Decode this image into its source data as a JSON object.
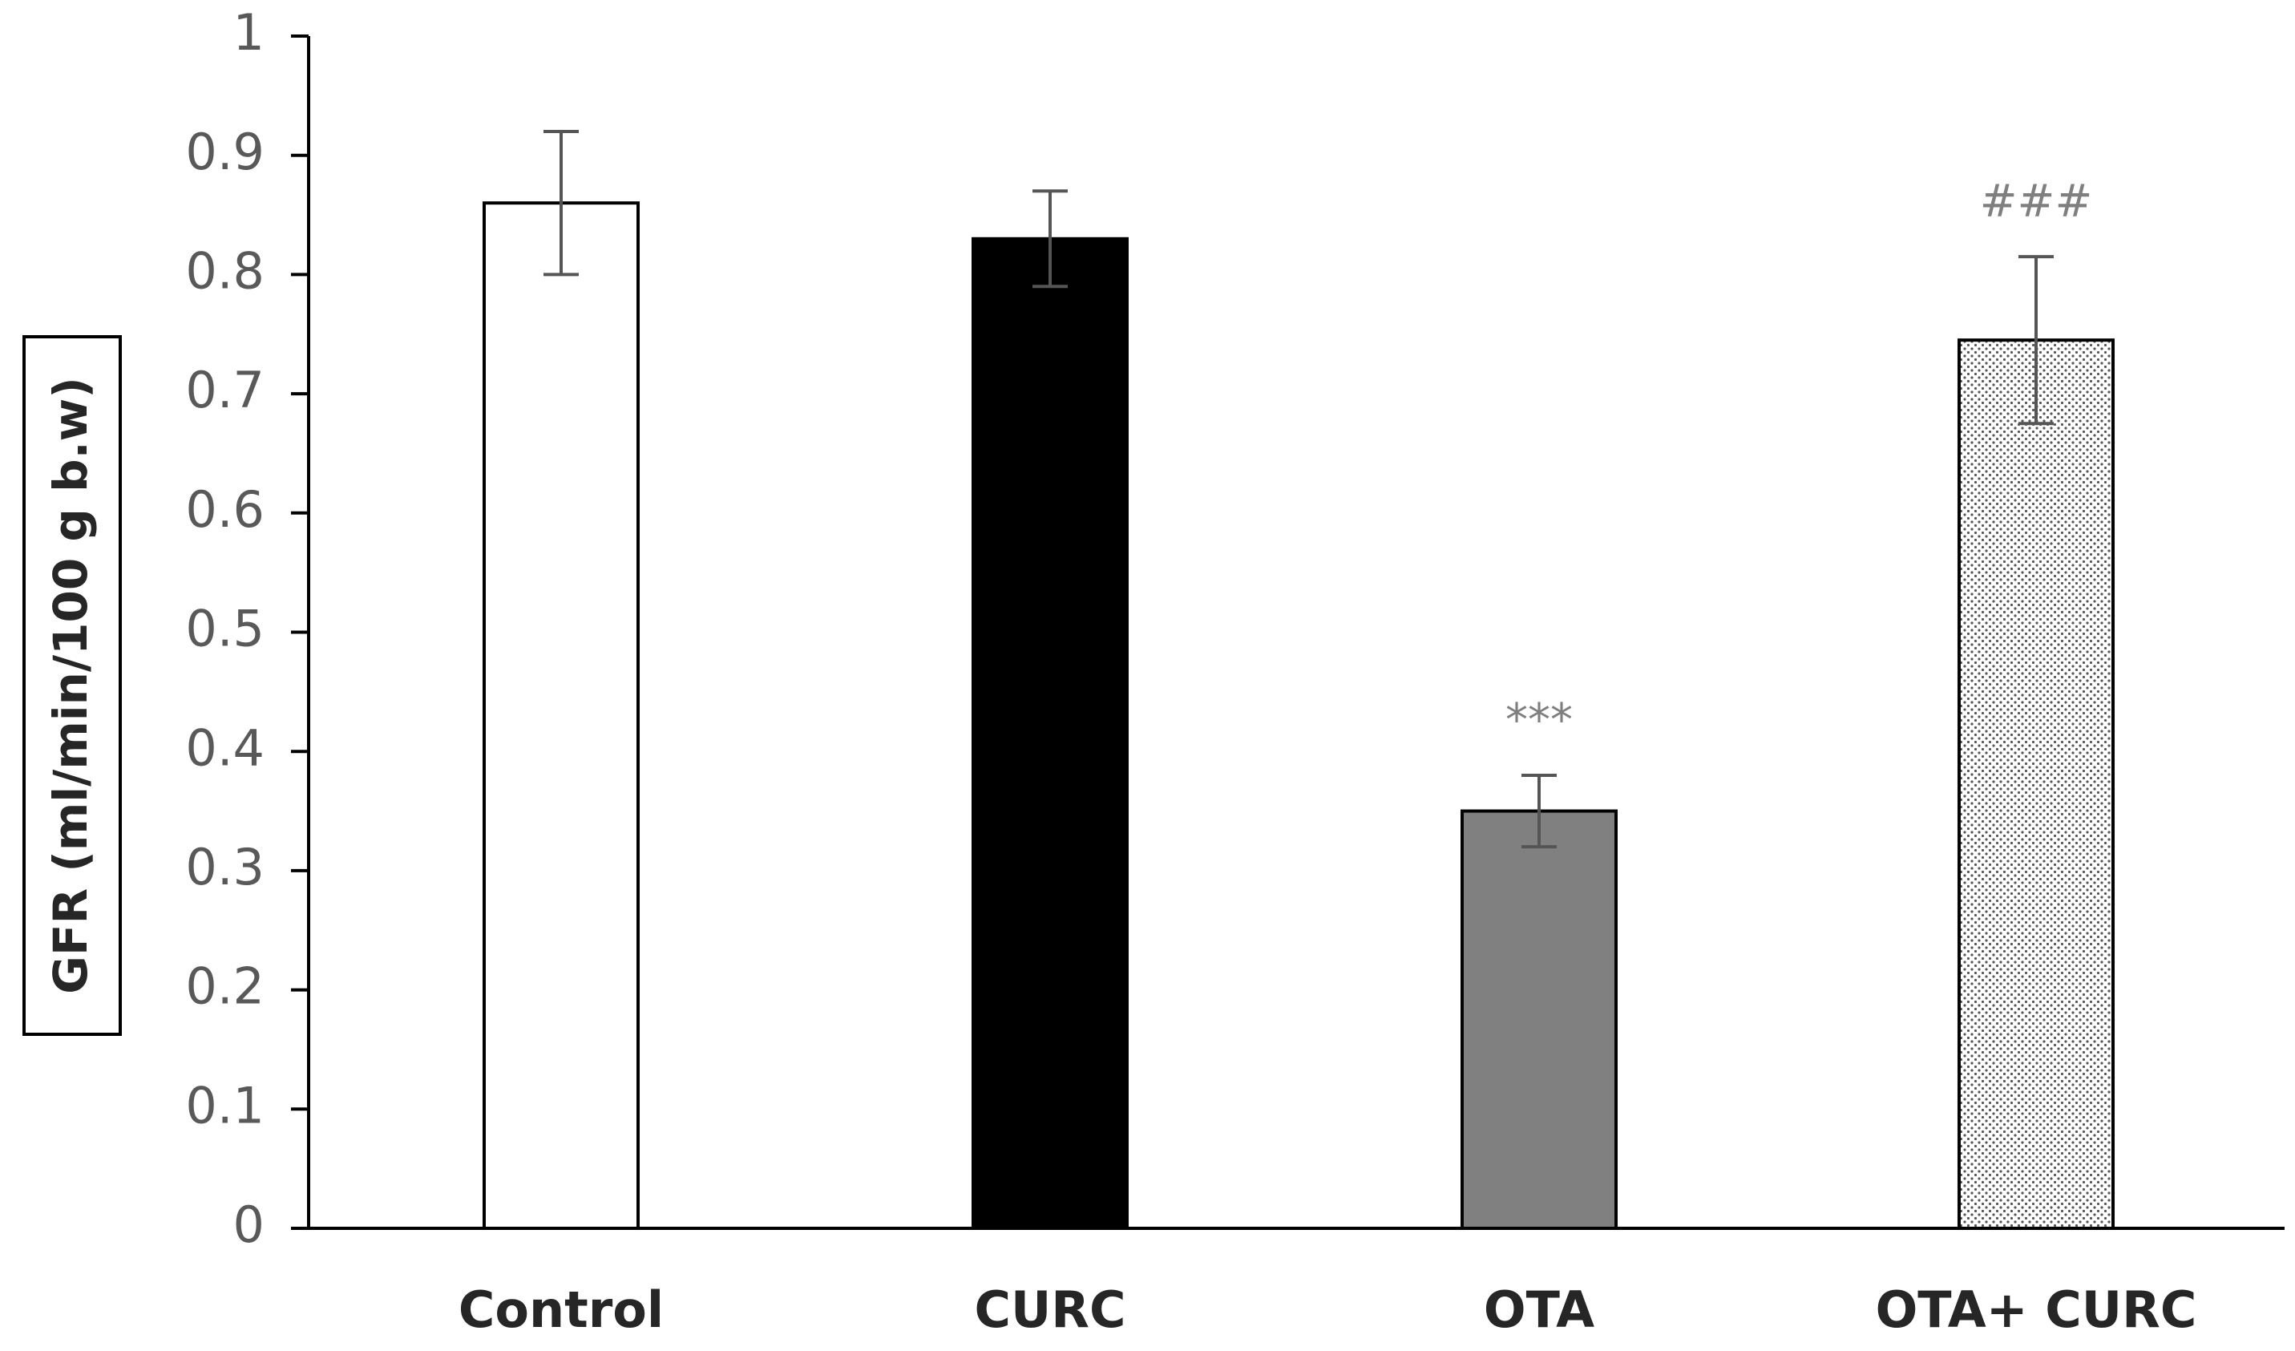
{
  "chart_data": {
    "type": "bar",
    "title": "",
    "xlabel": "",
    "ylabel": "GFR (ml/min/100 g b.w)",
    "ylim": [
      0,
      1
    ],
    "yticks": [
      0,
      0.1,
      0.2,
      0.3,
      0.4,
      0.5,
      0.6,
      0.7,
      0.8,
      0.9,
      1
    ],
    "ytick_labels": [
      "0",
      "0.1",
      "0.2",
      "0.3",
      "0.4",
      "0.5",
      "0.6",
      "0.7",
      "0.8",
      "0.9",
      "1"
    ],
    "grid": false,
    "categories": [
      "Control",
      "CURC",
      "OTA",
      "OTA+ CURC"
    ],
    "values": [
      0.86,
      0.83,
      0.35,
      0.745
    ],
    "errors": [
      0.06,
      0.04,
      0.03,
      0.07
    ],
    "bar_styles": [
      "white",
      "black",
      "gray",
      "dotted"
    ],
    "colors": {
      "white": "#ffffff",
      "black": "#000000",
      "gray": "#808080",
      "dotted_bg": "#ffffff",
      "dotted_dot": "#555555",
      "axis": "#000000",
      "error_bar": "#555555"
    },
    "annotations": [
      "",
      "",
      "***",
      "###"
    ]
  }
}
